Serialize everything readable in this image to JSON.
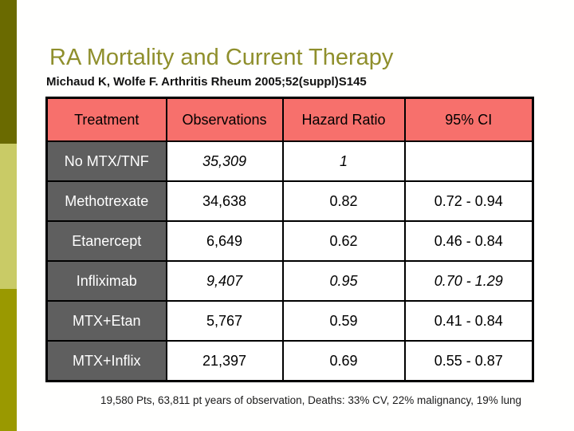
{
  "slide": {
    "title": "RA Mortality and Current Therapy",
    "subtitle": "Michaud K, Wolfe F. Arthritis Rheum 2005;52(suppl)S145",
    "footnote": "19,580 Pts, 63,811 pt years of observation, Deaths: 33% CV, 22% malignancy, 19% lung"
  },
  "colors": {
    "header_bg": "#f7706c",
    "row_label_bg": "#5f5f5f",
    "row_label_text": "#ffffff",
    "title_text": "#8f8f2c",
    "table_border": "#000000",
    "stripe_top": "#6a6a00",
    "stripe_middle": "#c9cb66",
    "stripe_bottom": "#9a9900"
  },
  "chart_data": {
    "type": "table",
    "columns": [
      "Treatment",
      "Observations",
      "Hazard Ratio",
      "95% CI"
    ],
    "rows": [
      {
        "treatment": "No MTX/TNF",
        "observations": "35,309",
        "hazard_ratio": "1",
        "ci": ""
      },
      {
        "treatment": "Methotrexate",
        "observations": "34,638",
        "hazard_ratio": "0.82",
        "ci": "0.72 - 0.94"
      },
      {
        "treatment": "Etanercept",
        "observations": "6,649",
        "hazard_ratio": "0.62",
        "ci": "0.46 - 0.84"
      },
      {
        "treatment": "Infliximab",
        "observations": "9,407",
        "hazard_ratio": "0.95",
        "ci": "0.70 - 1.29"
      },
      {
        "treatment": "MTX+Etan",
        "observations": "5,767",
        "hazard_ratio": "0.59",
        "ci": "0.41 - 0.84"
      },
      {
        "treatment": "MTX+Inflix",
        "observations": "21,397",
        "hazard_ratio": "0.69",
        "ci": "0.55 - 0.87"
      }
    ]
  }
}
